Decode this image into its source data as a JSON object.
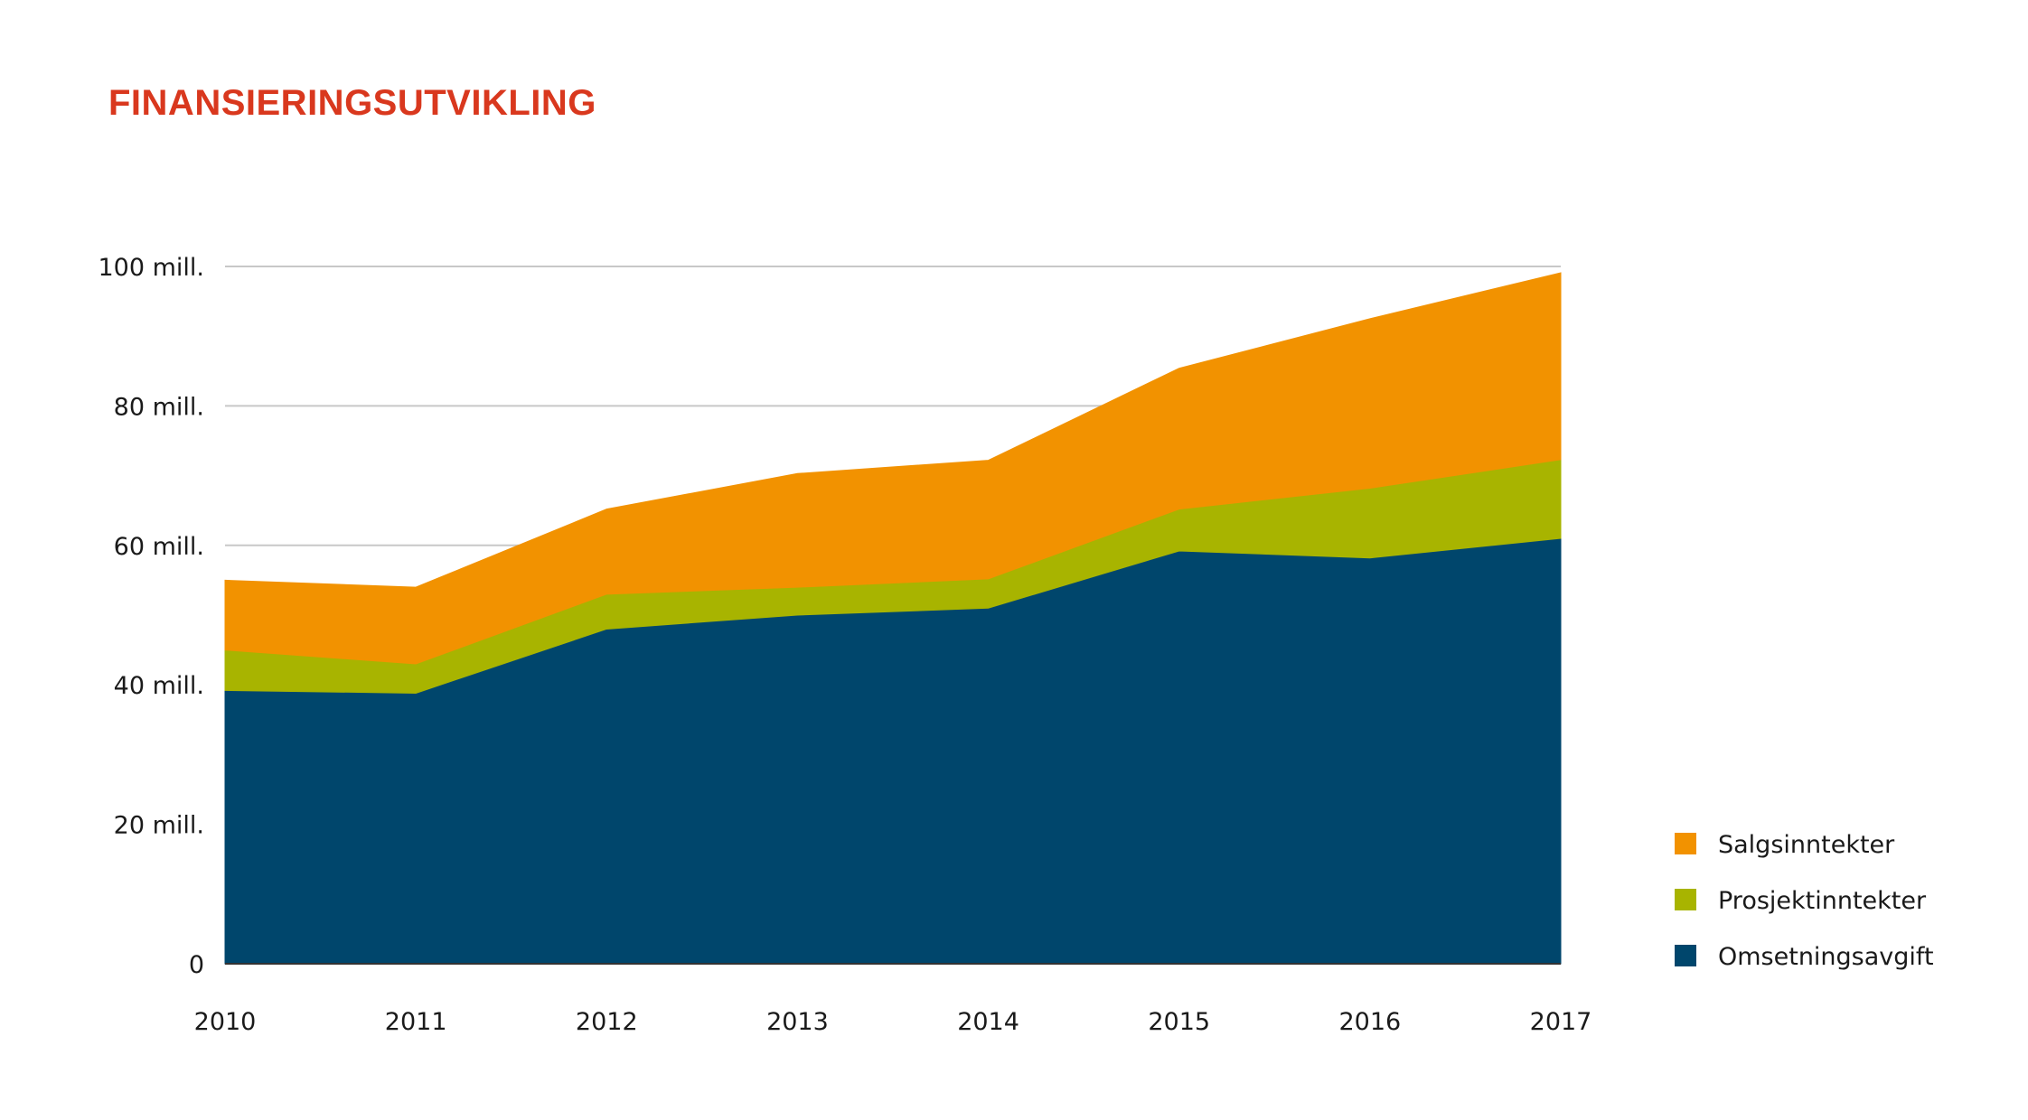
{
  "chart_data": {
    "type": "area",
    "stacked": true,
    "title": "FINANSIERINGSUTVIKLING",
    "x": [
      "2010",
      "2011",
      "2012",
      "2013",
      "2014",
      "2015",
      "2016",
      "2017"
    ],
    "series": [
      {
        "name": "Omsetningsavgift",
        "color": "#00466c",
        "values": [
          39.2,
          38.8,
          48,
          50,
          51,
          59.2,
          58.2,
          61
        ]
      },
      {
        "name": "Prosjektinntekter",
        "color": "#a8b400",
        "values": [
          5.8,
          4.2,
          5,
          4,
          4.2,
          6,
          10,
          11.3
        ]
      },
      {
        "name": "Salgsinntekter",
        "color": "#f29200",
        "values": [
          10,
          11,
          12.2,
          16.3,
          17,
          20.2,
          24.3,
          26.8
        ]
      }
    ],
    "yticks": [
      {
        "value": 0,
        "label": "0"
      },
      {
        "value": 20,
        "label": "20 mill."
      },
      {
        "value": 40,
        "label": "40 mill."
      },
      {
        "value": 60,
        "label": "60 mill."
      },
      {
        "value": 80,
        "label": "80 mill."
      },
      {
        "value": 100,
        "label": "100 mill."
      }
    ],
    "ylim": [
      0,
      100
    ],
    "grid": true,
    "legend_position": "bottom-right",
    "legend_order": [
      "Salgsinntekter",
      "Prosjektinntekter",
      "Omsetningsavgift"
    ],
    "title_color": "#d9381e",
    "gridline_color": "#c8c8c8",
    "axis_color": "#333333"
  }
}
